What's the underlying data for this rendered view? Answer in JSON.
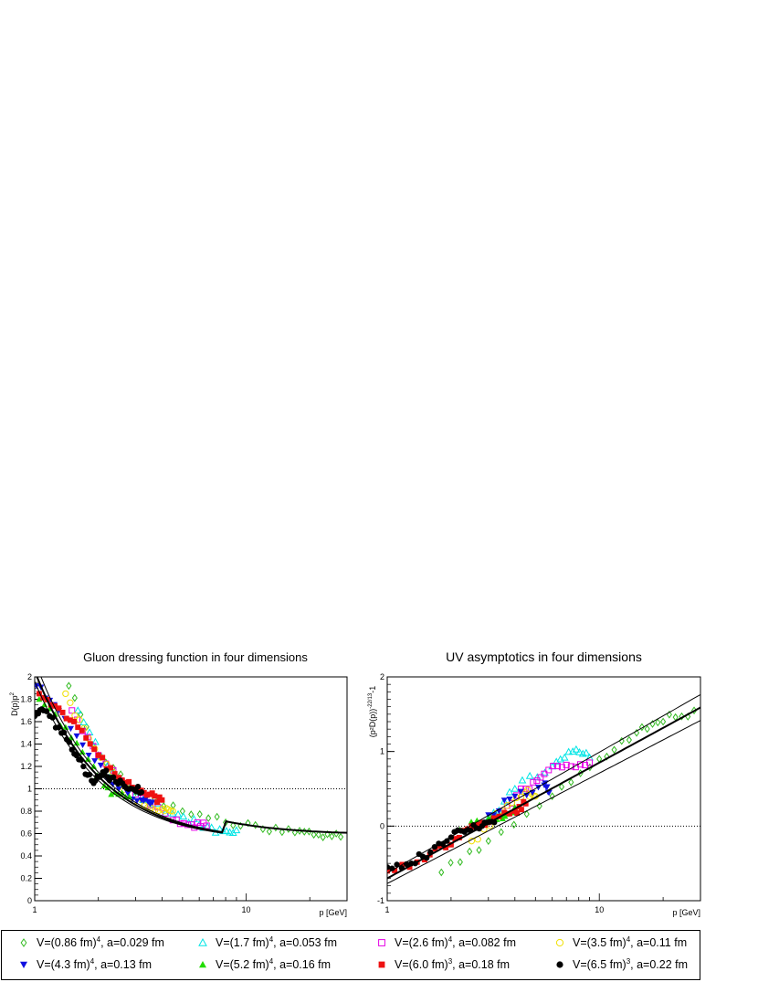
{
  "chart_data": [
    {
      "type": "scatter",
      "title": "Gluon dressing function in four dimensions",
      "ylabel": "D(p)p",
      "ylabel_sup": "2",
      "xlabel": "p [GeV]",
      "xscale": "log",
      "xlim": [
        1,
        30
      ],
      "ylim": [
        0,
        2
      ],
      "x_tick_labels": [
        "1",
        "10"
      ],
      "y_tick_labels": [
        "0",
        "0.2",
        "0.4",
        "0.6",
        "0.8",
        "1",
        "1.2",
        "1.4",
        "1.6",
        "1.8",
        "2"
      ],
      "reference_line": {
        "y": 1,
        "style": "dotted"
      },
      "fit_curve": "D(p)p^2 ≈ fit with error band",
      "series": [
        {
          "name": "V=(0.86 fm)^4, a=0.029 fm",
          "points": [
            [
              1.45,
              1.92
            ],
            [
              2,
              1.3
            ],
            [
              3,
              0.97
            ],
            [
              5,
              0.8
            ],
            [
              8,
              0.7
            ],
            [
              12,
              0.64
            ],
            [
              17,
              0.61
            ],
            [
              22,
              0.59
            ],
            [
              28,
              0.57
            ]
          ]
        },
        {
          "name": "V=(1.7 fm)^4, a=0.053 fm",
          "points": [
            [
              1.6,
              1.7
            ],
            [
              2.2,
              1.2
            ],
            [
              3,
              0.95
            ],
            [
              4.5,
              0.78
            ],
            [
              6,
              0.68
            ],
            [
              7.5,
              0.64
            ],
            [
              9,
              0.63
            ]
          ]
        },
        {
          "name": "V=(2.6 fm)^4, a=0.082 fm",
          "points": [
            [
              1.5,
              1.7
            ],
            [
              2,
              1.3
            ],
            [
              3,
              0.95
            ],
            [
              4.5,
              0.72
            ],
            [
              5.5,
              0.68
            ],
            [
              6.5,
              0.67
            ]
          ]
        },
        {
          "name": "V=(3.5 fm)^4, a=0.11 fm",
          "points": [
            [
              1.4,
              1.85
            ],
            [
              1.8,
              1.45
            ],
            [
              2.5,
              1.05
            ],
            [
              3.3,
              0.85
            ],
            [
              4,
              0.82
            ],
            [
              4.5,
              0.8
            ]
          ]
        },
        {
          "name": "V=(4.3 fm)^4, a=0.13 fm",
          "points": [
            [
              1.02,
              1.92
            ],
            [
              1.3,
              1.7
            ],
            [
              1.8,
              1.3
            ],
            [
              2.5,
              1.0
            ],
            [
              3.2,
              0.9
            ],
            [
              3.6,
              0.88
            ]
          ]
        },
        {
          "name": "V=(5.2 fm)^4, a=0.16 fm",
          "points": [
            [
              1.05,
              1.8
            ],
            [
              1.4,
              1.55
            ],
            [
              1.9,
              1.2
            ],
            [
              2.3,
              0.95
            ],
            [
              2.8,
              0.93
            ]
          ]
        },
        {
          "name": "V=(6.0 fm)^3, a=0.18 fm",
          "points": [
            [
              1.05,
              1.85
            ],
            [
              1.3,
              1.72
            ],
            [
              1.6,
              1.55
            ],
            [
              2,
              1.3
            ],
            [
              2.5,
              1.1
            ],
            [
              3,
              1.0
            ],
            [
              3.5,
              0.95
            ],
            [
              4,
              0.9
            ]
          ]
        },
        {
          "name": "V=(6.5 fm)^3, a=0.22 fm",
          "points": [
            [
              1.0,
              1.65
            ],
            [
              1.1,
              1.7
            ],
            [
              1.3,
              1.55
            ],
            [
              1.5,
              1.35
            ],
            [
              1.7,
              1.2
            ],
            [
              1.9,
              1.05
            ],
            [
              2.1,
              1.15
            ],
            [
              2.3,
              1.1
            ],
            [
              2.6,
              1.05
            ],
            [
              2.9,
              1.0
            ],
            [
              3.2,
              0.97
            ]
          ]
        }
      ]
    },
    {
      "type": "scatter",
      "title": "UV asymptotics in four dimensions",
      "ylabel": "(p²D(p))",
      "ylabel_sup": "-22/13",
      "ylabel_tail": "-1",
      "xlabel": "p [GeV]",
      "xscale": "log",
      "xlim": [
        1,
        30
      ],
      "ylim": [
        -1,
        2
      ],
      "x_tick_labels": [
        "1",
        "10"
      ],
      "y_tick_labels": [
        "-1",
        "0",
        "1",
        "2"
      ],
      "reference_line": {
        "y": 0,
        "style": "dotted"
      },
      "fit_curve": "linear in log p with error band",
      "series": [
        {
          "name": "V=(0.86 fm)^4, a=0.029 fm",
          "points": [
            [
              1.8,
              -0.62
            ],
            [
              3,
              -0.2
            ],
            [
              6,
              0.4
            ],
            [
              10,
              0.9
            ],
            [
              15,
              1.25
            ],
            [
              20,
              1.4
            ],
            [
              28,
              1.55
            ]
          ]
        },
        {
          "name": "V=(1.7 fm)^4, a=0.053 fm",
          "points": [
            [
              3,
              0.1
            ],
            [
              4,
              0.5
            ],
            [
              6,
              0.8
            ],
            [
              7.5,
              1.0
            ],
            [
              9,
              0.92
            ]
          ]
        },
        {
          "name": "V=(2.6 fm)^4, a=0.082 fm",
          "points": [
            [
              3.5,
              0.2
            ],
            [
              4.5,
              0.5
            ],
            [
              5.5,
              0.7
            ],
            [
              7,
              0.82
            ],
            [
              9,
              0.85
            ]
          ]
        },
        {
          "name": "V=(3.5 fm)^4, a=0.11 fm",
          "points": [
            [
              2.5,
              -0.2
            ],
            [
              3.5,
              0.2
            ],
            [
              4.5,
              0.45
            ],
            [
              5,
              0.4
            ]
          ]
        },
        {
          "name": "V=(4.3 fm)^4, a=0.13 fm",
          "points": [
            [
              3,
              0.15
            ],
            [
              4,
              0.4
            ],
            [
              5.5,
              0.55
            ],
            [
              5.8,
              0.45
            ]
          ]
        },
        {
          "name": "V=(5.2 fm)^4, a=0.16 fm",
          "points": [
            [
              2.2,
              -0.05
            ],
            [
              3,
              0.1
            ],
            [
              3.5,
              0.1
            ],
            [
              4,
              0.25
            ]
          ]
        },
        {
          "name": "V=(6.0 fm)^3, a=0.18 fm",
          "points": [
            [
              1,
              -0.6
            ],
            [
              1.5,
              -0.45
            ],
            [
              2,
              -0.25
            ],
            [
              2.5,
              0.0
            ],
            [
              3,
              0.05
            ],
            [
              4,
              0.2
            ],
            [
              4.5,
              0.3
            ]
          ]
        },
        {
          "name": "V=(6.5 fm)^3, a=0.22 fm",
          "points": [
            [
              1,
              -0.55
            ],
            [
              1.3,
              -0.5
            ],
            [
              1.6,
              -0.35
            ],
            [
              2,
              -0.15
            ],
            [
              2.4,
              -0.05
            ],
            [
              2.8,
              0.0
            ],
            [
              3.2,
              0.05
            ]
          ]
        }
      ]
    }
  ],
  "legend": [
    {
      "key": "s0",
      "prefix": "V=(0.86 fm)",
      "sup": "4",
      "suffix": ", a=0.029 fm",
      "color": "#33bb22",
      "marker": "open-diamond"
    },
    {
      "key": "s1",
      "prefix": "V=(1.7 fm)",
      "sup": "4",
      "suffix": ", a=0.053 fm",
      "color": "#00e5e5",
      "marker": "open-triangle"
    },
    {
      "key": "s2",
      "prefix": "V=(2.6 fm)",
      "sup": "4",
      "suffix": ", a=0.082 fm",
      "color": "#e600e6",
      "marker": "open-square"
    },
    {
      "key": "s3",
      "prefix": "V=(3.5 fm)",
      "sup": "4",
      "suffix": ", a=0.11 fm",
      "color": "#f0e000",
      "marker": "open-circle"
    },
    {
      "key": "s4",
      "prefix": "V=(4.3 fm)",
      "sup": "4",
      "suffix": ", a=0.13 fm",
      "color": "#1010e0",
      "marker": "filled-triangle-down"
    },
    {
      "key": "s5",
      "prefix": "V=(5.2 fm)",
      "sup": "4",
      "suffix": ", a=0.16 fm",
      "color": "#22dd00",
      "marker": "filled-triangle-up"
    },
    {
      "key": "s6",
      "prefix": "V=(6.0 fm)",
      "sup": "3",
      "suffix": ", a=0.18 fm",
      "color": "#ee1111",
      "marker": "filled-square"
    },
    {
      "key": "s7",
      "prefix": "V=(6.5 fm)",
      "sup": "3",
      "suffix": ", a=0.22 fm",
      "color": "#000000",
      "marker": "filled-circle"
    }
  ]
}
